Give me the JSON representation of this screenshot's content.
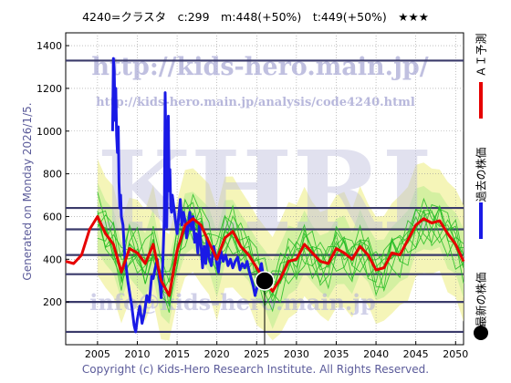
{
  "header": {
    "title": "4240=クラスタ　c:299　m:448(+50%)　t:449(+50%)　★★★"
  },
  "side_note": "Generated on Monday 2026/1/5.",
  "footer": {
    "copyright": "Copyright (c) Kids-Hero Research Institute. All Rights Reserved."
  },
  "watermarks": {
    "url": "http://kids-hero.main.jp/",
    "analysis_url": "http://kids-hero.main.jp/analysis/code4240.html",
    "logo": "KHRI",
    "email": "info@kids-hero.main.jp"
  },
  "legend": {
    "ai_forecast": "ＡＩ予測",
    "past_price": "過去の株価",
    "latest_price": "最新の株価"
  },
  "colors": {
    "past_price": "#1a1ae6",
    "ai_forecast": "#e60000",
    "ensemble": "#22bb22",
    "band_fill": "#f2f2a0",
    "band_inner": "#c8ee9a",
    "hline": "#3a3a6a",
    "latest_marker": "#000000"
  },
  "chart_data": {
    "type": "line",
    "xlim": [
      2001,
      2051
    ],
    "ylim": [
      0,
      1460
    ],
    "xticks": [
      2005,
      2010,
      2015,
      2020,
      2025,
      2030,
      2035,
      2040,
      2045,
      2050
    ],
    "yticks": [
      200,
      400,
      600,
      800,
      1000,
      1200,
      1400
    ],
    "hlines": [
      60,
      200,
      330,
      420,
      540,
      640,
      1330
    ],
    "latest": {
      "x": 2026.0,
      "y": 299,
      "label": "最新の株価"
    },
    "series": [
      {
        "name": "過去の株価",
        "x": [
          2006.9,
          2007.0,
          2007.1,
          2007.2,
          2007.3,
          2007.4,
          2007.5,
          2007.6,
          2007.7,
          2007.8,
          2007.9,
          2008.0,
          2008.2,
          2008.4,
          2008.6,
          2008.8,
          2009.0,
          2009.3,
          2009.6,
          2009.8,
          2010.0,
          2010.3,
          2010.6,
          2010.9,
          2011.2,
          2011.5,
          2011.8,
          2012.0,
          2012.2,
          2012.5,
          2012.8,
          2013.0,
          2013.2,
          2013.4,
          2013.5,
          2013.6,
          2013.7,
          2013.8,
          2013.9,
          2014.0,
          2014.1,
          2014.2,
          2014.3,
          2014.4,
          2014.6,
          2014.8,
          2015.0,
          2015.2,
          2015.4,
          2015.6,
          2015.8,
          2016.0,
          2016.2,
          2016.4,
          2016.6,
          2016.8,
          2017.0,
          2017.2,
          2017.4,
          2017.6,
          2017.8,
          2018.0,
          2018.2,
          2018.4,
          2018.6,
          2018.8,
          2019.0,
          2019.3,
          2019.6,
          2019.9,
          2020.2,
          2020.5,
          2020.8,
          2021.1,
          2021.4,
          2021.7,
          2022.0,
          2022.3,
          2022.6,
          2022.9,
          2023.2,
          2023.5,
          2023.8,
          2024.1,
          2024.4,
          2024.6,
          2024.8,
          2025.0,
          2025.2,
          2025.4,
          2025.6,
          2025.8
        ],
        "y": [
          1000,
          1340,
          1280,
          1050,
          1200,
          980,
          900,
          1020,
          760,
          640,
          700,
          600,
          560,
          430,
          360,
          300,
          250,
          180,
          90,
          60,
          120,
          180,
          100,
          150,
          230,
          200,
          320,
          310,
          350,
          400,
          300,
          220,
          380,
          600,
          1180,
          900,
          550,
          850,
          1070,
          720,
          820,
          650,
          620,
          700,
          640,
          580,
          520,
          600,
          680,
          560,
          620,
          580,
          500,
          550,
          620,
          540,
          600,
          480,
          520,
          430,
          560,
          470,
          360,
          460,
          380,
          500,
          410,
          370,
          460,
          400,
          340,
          440,
          390,
          420,
          370,
          400,
          360,
          390,
          410,
          350,
          380,
          360,
          390,
          340,
          300,
          270,
          230,
          260,
          300,
          350,
          380,
          330
        ]
      },
      {
        "name": "ＡＩ予測",
        "x": [
          2001,
          2002,
          2003,
          2004,
          2005,
          2006,
          2007,
          2008,
          2009,
          2010,
          2011,
          2012,
          2013,
          2014,
          2015,
          2016,
          2017,
          2018,
          2019,
          2020,
          2021,
          2022,
          2023,
          2024,
          2025,
          2026,
          2027,
          2028,
          2029,
          2030,
          2031,
          2032,
          2033,
          2034,
          2035,
          2036,
          2037,
          2038,
          2039,
          2040,
          2041,
          2042,
          2043,
          2044,
          2045,
          2046,
          2047,
          2048,
          2049,
          2050,
          2051
        ],
        "y": [
          390,
          380,
          420,
          540,
          600,
          520,
          470,
          340,
          450,
          430,
          380,
          470,
          300,
          230,
          440,
          560,
          590,
          560,
          480,
          400,
          500,
          530,
          460,
          420,
          360,
          300,
          250,
          310,
          390,
          400,
          470,
          430,
          390,
          380,
          450,
          430,
          400,
          460,
          420,
          350,
          360,
          430,
          420,
          490,
          560,
          590,
          570,
          580,
          520,
          470,
          390
        ]
      }
    ]
  }
}
